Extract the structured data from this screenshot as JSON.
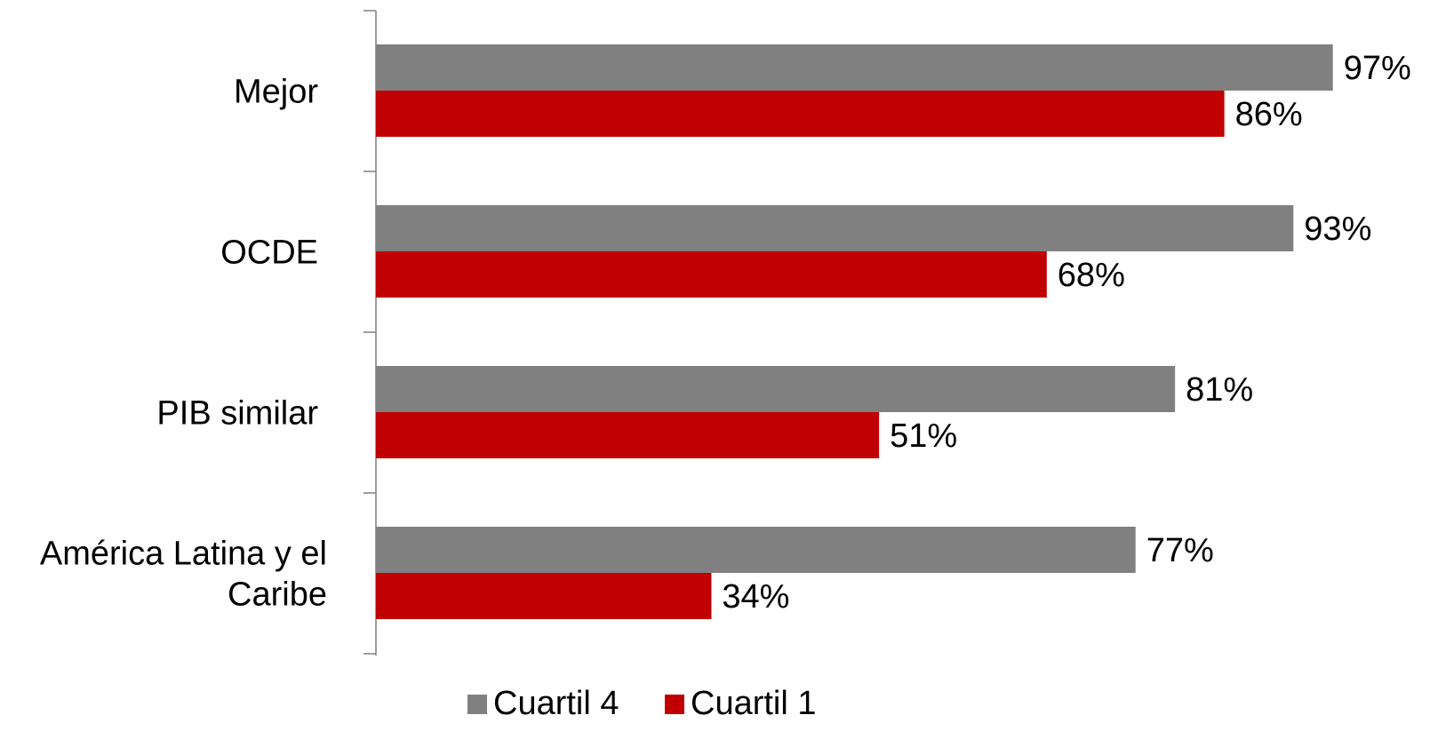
{
  "chart_data": {
    "type": "bar",
    "orientation": "horizontal",
    "categories": [
      "Mejor",
      "OCDE",
      "PIB similar",
      "América Latina y el Caribe"
    ],
    "series": [
      {
        "name": "Cuartil 4",
        "values": [
          97,
          93,
          81,
          77
        ],
        "color": "#808080"
      },
      {
        "name": "Cuartil 1",
        "values": [
          86,
          68,
          51,
          34
        ],
        "color": "#c00000"
      }
    ],
    "value_labels": {
      "Cuartil 4": [
        "97%",
        "93%",
        "81%",
        "77%"
      ],
      "Cuartil 1": [
        "86%",
        "68%",
        "51%",
        "34%"
      ]
    },
    "xlim": [
      0,
      100
    ],
    "grid": false,
    "legend_position": "bottom"
  }
}
